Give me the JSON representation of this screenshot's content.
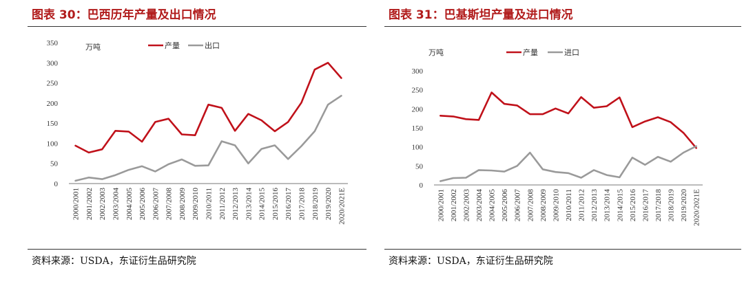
{
  "panels": [
    {
      "title": "图表 30：巴西历年产量及出口情况",
      "source": "资料来源：USDA，东证衍生品研究院",
      "unit": "万吨",
      "chart_data": {
        "type": "line",
        "title": "图表 30：巴西历年产量及出口情况",
        "ylabel": "万吨",
        "ylim": [
          0,
          350
        ],
        "yticks": [
          0,
          50,
          100,
          150,
          200,
          250,
          300,
          350
        ],
        "grid": false,
        "legend_position": "top",
        "categories": [
          "2000/2001",
          "2001/2002",
          "2002/2003",
          "2003/2004",
          "2004/2005",
          "2005/2006",
          "2006/2007",
          "2007/2008",
          "2008/2009",
          "2009/2010",
          "2010/2011",
          "2011/2012",
          "2012/2013",
          "2013/2014",
          "2014/2015",
          "2015/2016",
          "2016/2017",
          "2017/2018",
          "2018/2019",
          "2019/2020",
          "2020/2021E"
        ],
        "series": [
          {
            "name": "产量",
            "color": "#c0111a",
            "values": [
              94,
              77,
              85,
              131,
              129,
              104,
              153,
              161,
              122,
              120,
              196,
              188,
              131,
              173,
              157,
              130,
              153,
              201,
              283,
              300,
              262
            ]
          },
          {
            "name": "出口",
            "color": "#9a9a9a",
            "values": [
              7,
              15,
              11,
              21,
              34,
              43,
              30,
              48,
              60,
              44,
              45,
              105,
              95,
              50,
              86,
              95,
              61,
              93,
              130,
              196,
              218
            ]
          }
        ]
      }
    },
    {
      "title": "图表 31：巴基斯坦产量及进口情况",
      "source": "资料来源：USDA，东证衍生品研究院",
      "unit": "万吨",
      "chart_data": {
        "type": "line",
        "title": "图表 31：巴基斯坦产量及进口情况",
        "ylabel": "万吨",
        "ylim": [
          0,
          300
        ],
        "yticks": [
          0,
          50,
          100,
          150,
          200,
          250,
          300
        ],
        "grid": false,
        "legend_position": "top",
        "categories": [
          "2000/2001",
          "2001/2002",
          "2002/2003",
          "2003/2004",
          "2004/2005",
          "2005/2006",
          "2006/2007",
          "2007/2008",
          "2008/2009",
          "2009/2010",
          "2010/2011",
          "2011/2012",
          "2012/2013",
          "2013/2014",
          "2014/2015",
          "2015/2016",
          "2016/2017",
          "2017/2018",
          "2018/2019",
          "2019/2020",
          "2020/2021E"
        ],
        "series": [
          {
            "name": "产量",
            "color": "#c0111a",
            "values": [
              182,
              180,
              173,
              171,
              243,
              213,
              209,
              186,
              186,
              201,
              188,
              231,
              203,
              207,
              230,
              152,
              167,
              178,
              165,
              137,
              97
            ]
          },
          {
            "name": "进口",
            "color": "#9a9a9a",
            "values": [
              10,
              18,
              19,
              39,
              38,
              35,
              50,
              85,
              41,
              34,
              31,
              19,
              39,
              26,
              20,
              72,
              53,
              74,
              61,
              85,
              102
            ]
          }
        ]
      }
    }
  ]
}
